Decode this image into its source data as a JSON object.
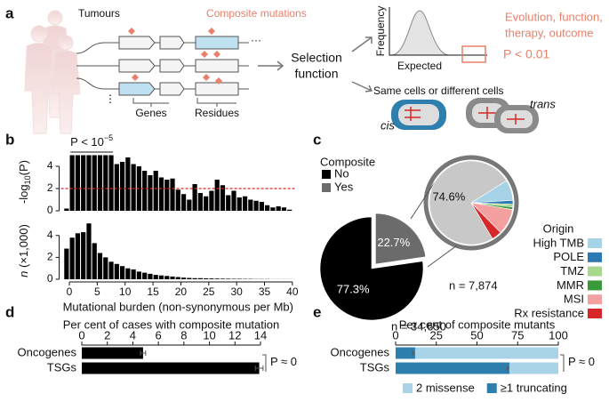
{
  "panel_labels": [
    "a",
    "b",
    "c",
    "d",
    "e"
  ],
  "diagram": {
    "tumours": "Tumours",
    "composite_mutations": "Composite mutations",
    "ellipsis": "···",
    "vertical_ellipsis": "⋮",
    "genes": "Genes",
    "residues": "Residues",
    "selection_function": [
      "Selection",
      "function"
    ],
    "frequency": "Frequency",
    "expected": "Expected",
    "outcome": [
      "Evolution, function,",
      "therapy, outcome"
    ],
    "p_threshold": "P < 0.01",
    "cells": "Same cells or different cells",
    "cis": "cis",
    "trans": "trans"
  },
  "chart_data": [
    {
      "type": "bar",
      "ylabel": [
        "-log",
        "10",
        "(P)"
      ],
      "annotation": "P < 10",
      "annotation_sup": "−5",
      "x": [
        -0.5,
        0.5,
        1.5,
        2.5,
        3.5,
        4.5,
        5.5,
        6.5,
        7.5,
        8.5,
        9.5,
        10.5,
        11.5,
        12.5,
        13.5,
        14.5,
        15.5,
        16.5,
        17.5,
        18.5,
        19.5,
        20.5,
        21.5,
        22.5,
        23.5,
        24.5,
        25.5,
        26.5,
        27.5,
        28.5,
        29.5,
        30.5,
        31.5,
        32.5,
        33.5,
        34.5,
        35.5,
        36.5,
        37.5,
        38.5,
        39.5
      ],
      "values": [
        0.2,
        5,
        5,
        5,
        5,
        5,
        5,
        5,
        5,
        4.2,
        4.4,
        4.8,
        4.2,
        4.0,
        3.6,
        3.2,
        3.6,
        3.0,
        2.8,
        2.9,
        1.9,
        1.5,
        1.0,
        2.4,
        1.6,
        1.3,
        1.8,
        2.8,
        2.3,
        1.4,
        1.8,
        1.2,
        1.3,
        1.0,
        0.9,
        0.8,
        0.5,
        0.3,
        0.4,
        0.3,
        0.1
      ],
      "color": "#000000",
      "threshold": 2,
      "threshold_color": "#d62828",
      "xlim": [
        -1.5,
        40.5
      ],
      "ylim": [
        0,
        5.2
      ],
      "yticks": [
        0,
        2,
        4
      ]
    },
    {
      "type": "bar",
      "ylabel": [
        "n",
        " (×1,000)"
      ],
      "xlabel": "Mutational burden (non-synonymous per Mb)",
      "x": [
        -0.5,
        0.5,
        1.5,
        2.5,
        3.5,
        4.5,
        5.5,
        6.5,
        7.5,
        8.5,
        9.5,
        10.5,
        11.5,
        12.5,
        13.5,
        14.5,
        15.5,
        16.5,
        17.5,
        18.5,
        19.5,
        20.5,
        21.5,
        22.5,
        23.5,
        24.5,
        25.5,
        26.5,
        27.5,
        28.5,
        29.5,
        30.5,
        31.5,
        32.5,
        33.5,
        34.5,
        35.5,
        36.5,
        37.5,
        38.5,
        39.5
      ],
      "values": [
        2.8,
        3.8,
        4.2,
        4.3,
        5.1,
        3.3,
        2.4,
        2.0,
        1.6,
        1.4,
        1.2,
        1.0,
        0.9,
        0.7,
        0.6,
        0.5,
        0.4,
        0.35,
        0.3,
        0.25,
        0.2,
        0.15,
        0.12,
        0.1,
        0.1,
        0.08,
        0.07,
        0.06,
        0.05,
        0.05,
        0.04,
        0.04,
        0.03,
        0.03,
        0.02,
        0.02,
        0.02,
        0.01,
        0.01,
        0.01,
        0.01
      ],
      "color": "#000000",
      "xlim": [
        -1.5,
        40.5
      ],
      "xticks": [
        0,
        5,
        10,
        15,
        20,
        25,
        30,
        35,
        40
      ],
      "ylim": [
        0,
        5.2
      ],
      "yticks": [
        0,
        2,
        4
      ]
    },
    {
      "type": "pie",
      "legend_title": "Composite",
      "categories": [
        "No",
        "Yes"
      ],
      "values": [
        77.3,
        22.7
      ],
      "value_labels": [
        "77.3%",
        "22.7%"
      ],
      "colors": [
        "#000000",
        "#6b6b6b"
      ],
      "annotation": "n = 34,650"
    },
    {
      "type": "pie",
      "legend_title": "Origin",
      "categories": [
        "High TMB",
        "POLE",
        "TMZ",
        "MMR",
        "MSI",
        "Rx resistance",
        null
      ],
      "values": [
        8,
        1.5,
        1,
        1,
        10,
        3.9,
        74.6
      ],
      "value_labels": [
        null,
        null,
        null,
        null,
        null,
        null,
        "74.6%"
      ],
      "colors": [
        "#a6d3e8",
        "#2d7ab3",
        "#a7d88e",
        "#3a9a3a",
        "#f4a0a0",
        "#d62828",
        "#c8c8c8"
      ],
      "annotation": "n = 7,874"
    },
    {
      "type": "hbar",
      "title": "Per cent of cases with composite mutation",
      "categories": [
        "Oncogenes",
        "TSGs"
      ],
      "values": [
        4.8,
        13.9
      ],
      "errors": [
        0.2,
        0.3
      ],
      "color": "#000000",
      "annotation": "P ≈ 0",
      "xlim": [
        0,
        14
      ],
      "xticks": [
        0,
        2,
        4,
        6,
        8,
        10,
        12,
        14
      ]
    },
    {
      "type": "stacked_hbar",
      "title": "Per cent of composite mutants",
      "categories": [
        "Oncogenes",
        "TSGs"
      ],
      "series": [
        {
          "name": "≥1 truncating",
          "color": "#2f7fae",
          "values": [
            12,
            70
          ],
          "errors": [
            1.5,
            1.5
          ]
        },
        {
          "name": "2 missense",
          "color": "#a9d4e8",
          "values": [
            88,
            30
          ]
        }
      ],
      "annotation": "P ≈ 0",
      "xlim": [
        0,
        100
      ],
      "xticks": [
        0,
        25,
        50,
        75,
        100
      ]
    }
  ]
}
